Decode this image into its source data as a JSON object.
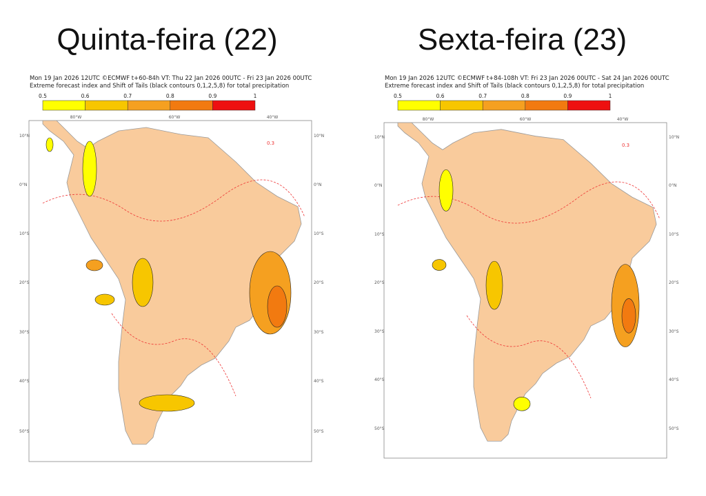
{
  "panels": [
    {
      "title": "Quinta-feira (22)",
      "header": [
        "Mon 19 Jan 2026 12UTC ©ECMWF t+60-84h  VT: Thu 22 Jan 2026 00UTC - Fri 23 Jan 2026 00UTC",
        "Extreme forecast index and Shift of Tails (black contours 0,1,2,5,8) for total precipitation"
      ],
      "colorbar": {
        "ticks": [
          0.5,
          0.6,
          0.7,
          0.8,
          0.9,
          1
        ],
        "colors": [
          "#ffff00",
          "#f7c600",
          "#f5a020",
          "#f27a10",
          "#ee1010"
        ]
      },
      "lat_labels": [
        "10°N",
        "0°N",
        "10°S",
        "20°S",
        "30°S",
        "40°S",
        "50°S"
      ],
      "lon_labels": [
        "80°W",
        "60°W",
        "40°W"
      ],
      "contour_label": "0.3"
    },
    {
      "title": "Sexta-feira (23)",
      "header": [
        "Mon 19 Jan 2026 12UTC ©ECMWF t+84-108h  VT: Fri 23 Jan 2026 00UTC - Sat 24 Jan 2026 00UTC",
        "Extreme forecast index and Shift of Tails (black contours 0,1,2,5,8) for total precipitation"
      ],
      "colorbar": {
        "ticks": [
          0.5,
          0.6,
          0.7,
          0.8,
          0.9,
          1
        ],
        "colors": [
          "#ffff00",
          "#f7c600",
          "#f5a020",
          "#f27a10",
          "#ee1010"
        ]
      },
      "lat_labels": [
        "10°N",
        "0°N",
        "10°S",
        "20°S",
        "30°S",
        "40°S",
        "50°S"
      ],
      "lon_labels": [
        "80°W",
        "60°W",
        "40°W"
      ],
      "contour_label": "0.3"
    }
  ]
}
